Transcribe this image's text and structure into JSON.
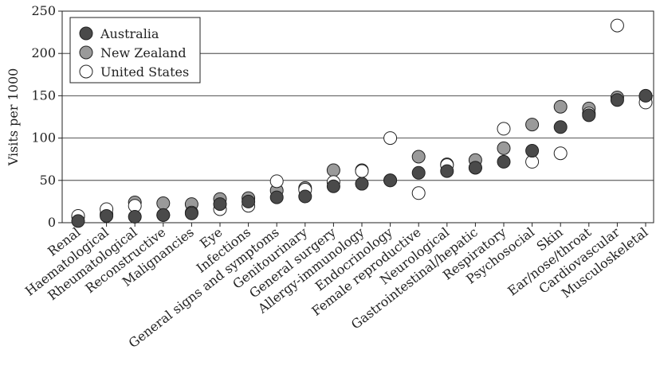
{
  "chart_data": {
    "type": "scatter",
    "title": "",
    "xlabel": "",
    "ylabel": "Visits per 1000",
    "ylim": [
      0,
      250
    ],
    "yticks": [
      0,
      50,
      100,
      150,
      200,
      250
    ],
    "grid": "horizontal",
    "legend_position": "top-left",
    "categories": [
      "Renal",
      "Haematological",
      "Rheumatological",
      "Reconstructive",
      "Malignancies",
      "Eye",
      "Infections",
      "General signs and symptoms",
      "Genitourinary",
      "General surgery",
      "Allergy-immunology",
      "Endocrinology",
      "Female reproductive",
      "Neurological",
      "Gastrointestinal/hepatic",
      "Respiratory",
      "Psychosocial",
      "Skin",
      "Ear/nose/throat",
      "Cardiovascular",
      "Musculoskeletal"
    ],
    "series": [
      {
        "name": "New Zealand",
        "color": "#9a9a9a",
        "values": [
          7,
          10,
          24,
          23,
          22,
          28,
          29,
          38,
          41,
          62,
          62,
          50,
          78,
          69,
          74,
          88,
          116,
          137,
          135,
          148,
          149
        ]
      },
      {
        "name": "United States",
        "color": "#ffffff",
        "values": [
          8,
          16,
          20,
          9,
          12,
          16,
          20,
          49,
          39,
          48,
          61,
          100,
          35,
          68,
          65,
          111,
          72,
          82,
          129,
          233,
          142
        ]
      },
      {
        "name": "Australia",
        "color": "#4a4a4a",
        "values": [
          2,
          8,
          7,
          9,
          11,
          22,
          25,
          30,
          31,
          43,
          46,
          50,
          59,
          61,
          65,
          72,
          85,
          113,
          127,
          145,
          150
        ]
      }
    ]
  }
}
